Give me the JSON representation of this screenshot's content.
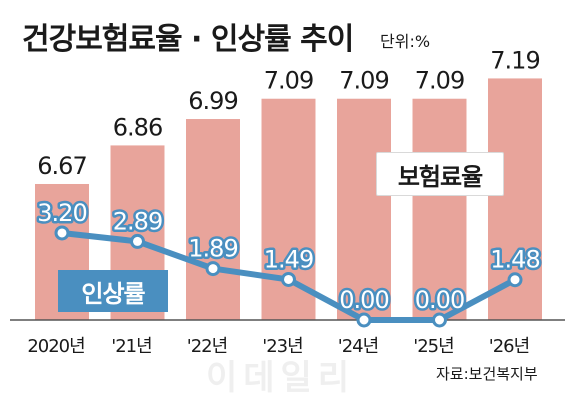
{
  "header": {
    "title": "건강보험료율 · 인상률 추이",
    "unit": "단위:%"
  },
  "legend": {
    "bar_label": "보험료율",
    "line_label": "인상률"
  },
  "source": "자료:보건복지부",
  "watermark": "이데일리",
  "colors": {
    "bar": "#e8a49b",
    "line": "#4a8fc0",
    "line_label": "#ffffff",
    "axis": "#555555"
  },
  "chart_data": {
    "type": "bar",
    "categories": [
      "2020년",
      "'21년",
      "'22년",
      "'23년",
      "'24년",
      "'25년",
      "'26년"
    ],
    "series": [
      {
        "name": "보험료율",
        "type": "bar",
        "values": [
          6.67,
          6.86,
          6.99,
          7.09,
          7.09,
          7.09,
          7.19
        ]
      },
      {
        "name": "인상률",
        "type": "line",
        "values": [
          3.2,
          2.89,
          1.89,
          1.49,
          0.0,
          0.0,
          1.48
        ]
      }
    ],
    "bar_labels": [
      "6.67",
      "6.86",
      "6.99",
      "7.09",
      "7.09",
      "7.09",
      "7.19"
    ],
    "line_labels": [
      "3.20",
      "2.89",
      "1.89",
      "1.49",
      "0.00",
      "0.00",
      "1.48"
    ],
    "grid": false
  }
}
